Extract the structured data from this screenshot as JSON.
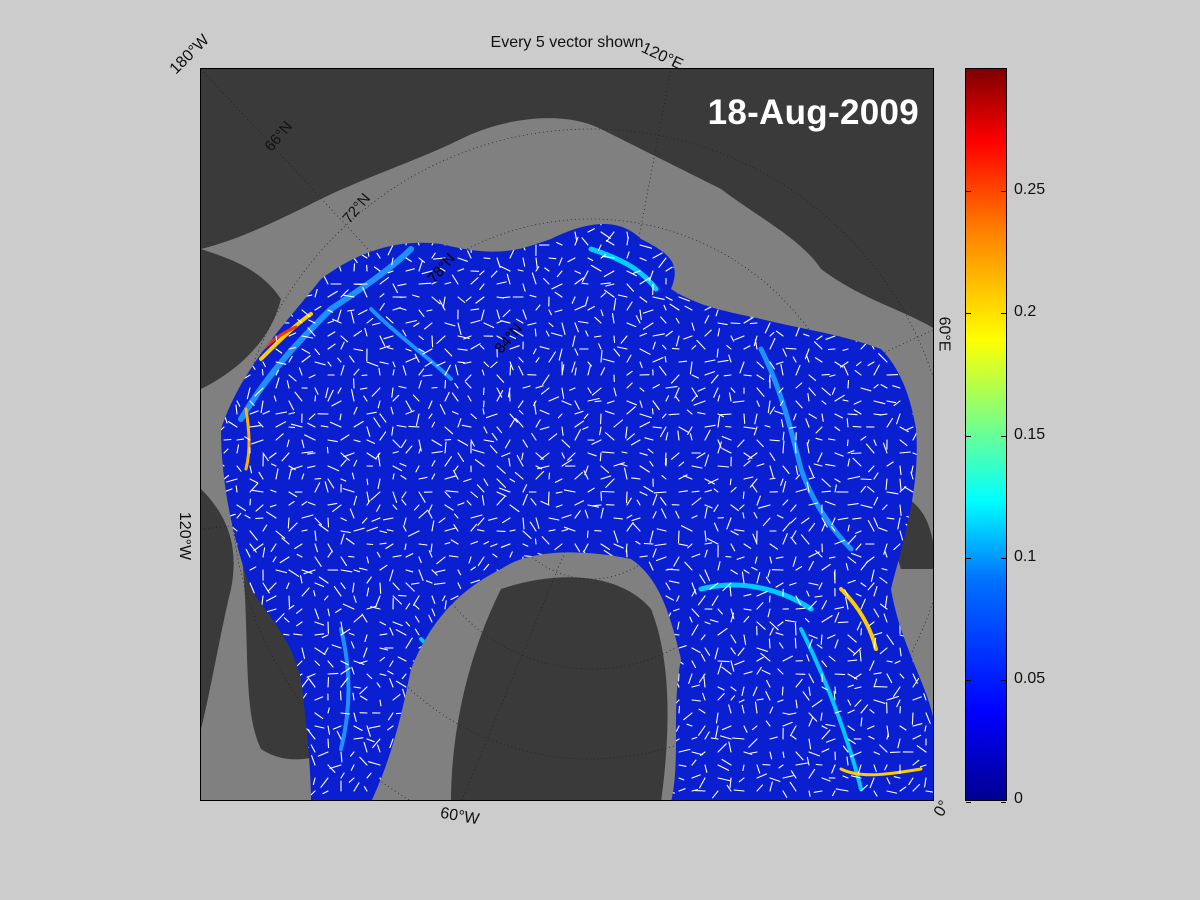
{
  "title": "Every 5 vector shown",
  "date": "18-Aug-2009",
  "edge_labels": {
    "top_left": "180°W",
    "top_right": "120°E",
    "right": "60°E",
    "left": "120°W",
    "bottom": "60°W",
    "bottom_right": "0°"
  },
  "lat_labels": [
    "66°N",
    "72°N",
    "78°N",
    "84°N"
  ],
  "colorbar": {
    "min": 0,
    "max": 0.3,
    "tick_values": [
      0,
      0.05,
      0.1,
      0.15,
      0.2,
      0.25
    ],
    "tick_labels": [
      "0",
      "0.05",
      "0.1",
      "0.15",
      "0.2",
      "0.25"
    ],
    "colormap": "jet"
  },
  "colors": {
    "land": "#3a3a3a",
    "ocean_no_data": "#808080",
    "ice_base": "#0a1fcf",
    "vectors": "#ffffff",
    "background": "#cccccc"
  }
}
